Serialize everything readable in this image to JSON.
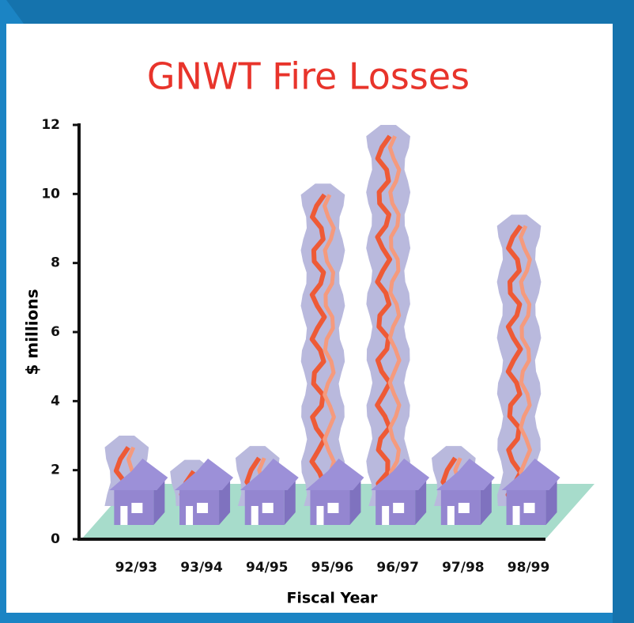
{
  "chart_data": {
    "type": "bar",
    "title": "GNWT Fire Losses",
    "y_label": "$ millions",
    "x_label": "Fiscal Year",
    "categories": [
      "92/93",
      "93/94",
      "94/95",
      "95/96",
      "96/97",
      "97/98",
      "98/99"
    ],
    "values": [
      3.0,
      2.3,
      2.7,
      10.3,
      12.0,
      2.7,
      9.4
    ],
    "color": "#b9b9dd",
    "ylim": [
      0,
      12
    ],
    "yticks": [
      0,
      2,
      4,
      6,
      8,
      10,
      12
    ]
  }
}
